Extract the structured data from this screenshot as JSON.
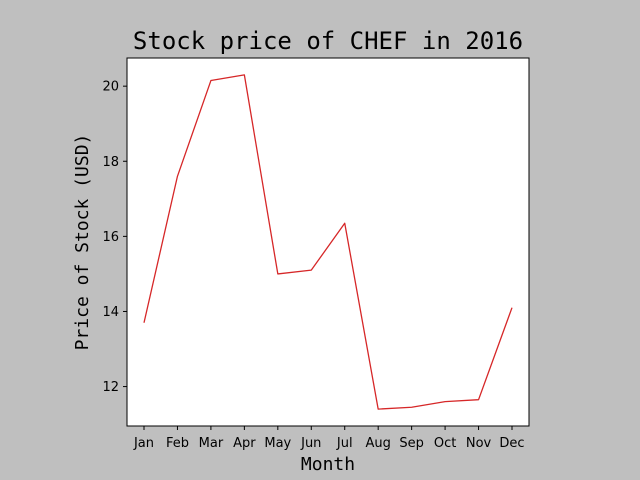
{
  "colors": {
    "figure_background": "#bfbfbf",
    "plot_background": "#ffffff",
    "line": "#d62728"
  },
  "chart_data": {
    "type": "line",
    "title": "Stock price of CHEF in 2016",
    "xlabel": "Month",
    "ylabel": "Price of Stock (USD)",
    "categories": [
      "Jan",
      "Feb",
      "Mar",
      "Apr",
      "May",
      "Jun",
      "Jul",
      "Aug",
      "Sep",
      "Oct",
      "Nov",
      "Dec"
    ],
    "series": [
      {
        "values": [
          13.7,
          17.6,
          20.15,
          20.3,
          15.0,
          15.1,
          16.35,
          11.4,
          11.45,
          11.6,
          11.65,
          14.1
        ]
      }
    ],
    "ylim": [
      10.95,
      20.75
    ],
    "yticks": [
      12,
      14,
      16,
      18,
      20
    ],
    "grid": false
  }
}
